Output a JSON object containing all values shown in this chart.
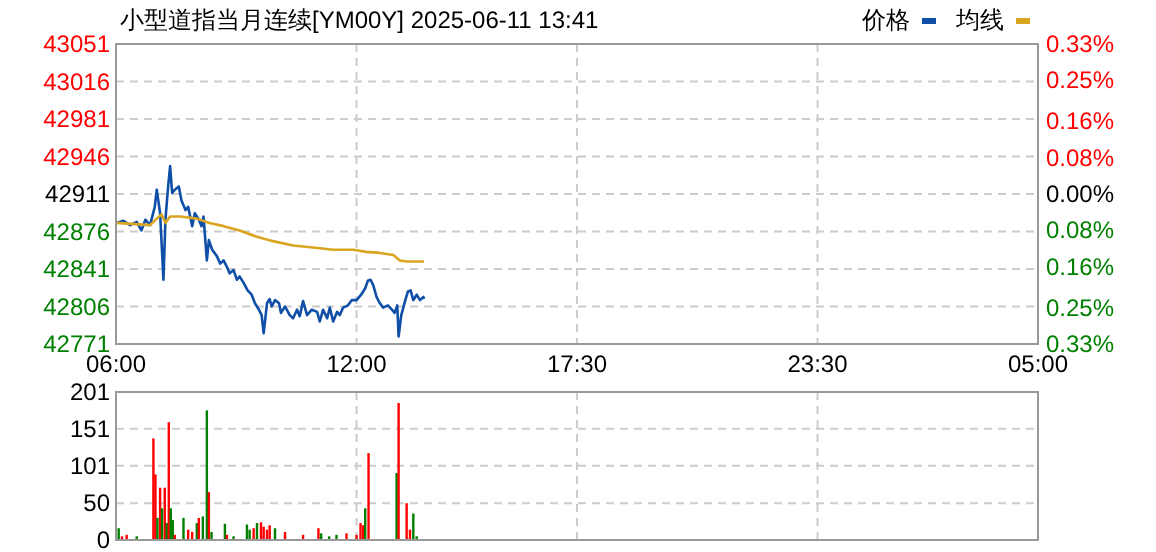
{
  "chart_data": [
    {
      "type": "line",
      "title": "小型道指当月连续[YM00Y] 2025-06-11 13:41",
      "xlim": [
        "2025-06-11T06:00",
        "2025-06-12T05:00"
      ],
      "xticks": [
        {
          "value": "2025-06-11T06:00",
          "label": "06:00"
        },
        {
          "value": "2025-06-11T12:00",
          "label": "12:00"
        },
        {
          "value": "2025-06-11T17:30",
          "label": "17:30"
        },
        {
          "value": "2025-06-11T23:30",
          "label": "23:30"
        },
        {
          "value": "2025-06-12T05:00",
          "label": "05:00"
        }
      ],
      "ylim": [
        42771,
        43051
      ],
      "yticks": [
        42771,
        42806,
        42841,
        42876,
        42911,
        42946,
        42981,
        43016,
        43051
      ],
      "y2lim": [
        -0.33,
        0.33
      ],
      "y2ticks": [
        {
          "value": -0.33,
          "label": "0.33%"
        },
        {
          "value": -0.25,
          "label": "0.25%"
        },
        {
          "value": -0.16,
          "label": "0.16%"
        },
        {
          "value": -0.08,
          "label": "0.08%"
        },
        {
          "value": 0,
          "label": "0.00%"
        },
        {
          "value": 0.08,
          "label": "0.08%"
        },
        {
          "value": 0.16,
          "label": "0.16%"
        },
        {
          "value": 0.25,
          "label": "0.25%"
        },
        {
          "value": 0.33,
          "label": "0.33%"
        }
      ],
      "grid": true,
      "legend": "top right",
      "series": [
        {
          "name": "价格",
          "color": "#0f4fa8",
          "x": [
            "2025-06-11T06:01",
            "2025-06-11T06:11",
            "2025-06-11T06:21",
            "2025-06-11T06:31",
            "2025-06-11T06:38",
            "2025-06-11T06:44",
            "2025-06-11T06:51",
            "2025-06-11T06:58",
            "2025-06-11T07:01",
            "2025-06-11T07:06",
            "2025-06-11T07:11",
            "2025-06-11T07:14",
            "2025-06-11T07:18",
            "2025-06-11T07:21",
            "2025-06-11T07:24",
            "2025-06-11T07:28",
            "2025-06-11T07:34",
            "2025-06-11T07:38",
            "2025-06-11T07:44",
            "2025-06-11T07:48",
            "2025-06-11T07:54",
            "2025-06-11T07:58",
            "2025-06-11T08:04",
            "2025-06-11T08:08",
            "2025-06-11T08:11",
            "2025-06-11T08:16",
            "2025-06-11T08:19",
            "2025-06-11T08:24",
            "2025-06-11T08:31",
            "2025-06-11T08:36",
            "2025-06-11T08:41",
            "2025-06-11T08:46",
            "2025-06-11T08:50",
            "2025-06-11T08:56",
            "2025-06-11T09:01",
            "2025-06-11T09:05",
            "2025-06-11T09:11",
            "2025-06-11T09:17",
            "2025-06-11T09:23",
            "2025-06-11T09:28",
            "2025-06-11T09:34",
            "2025-06-11T09:38",
            "2025-06-11T09:41",
            "2025-06-11T09:46",
            "2025-06-11T09:50",
            "2025-06-11T09:53",
            "2025-06-11T09:58",
            "2025-06-11T10:04",
            "2025-06-11T10:07",
            "2025-06-11T10:13",
            "2025-06-11T10:20",
            "2025-06-11T10:25",
            "2025-06-11T10:31",
            "2025-06-11T10:35",
            "2025-06-11T10:40",
            "2025-06-11T10:46",
            "2025-06-11T10:53",
            "2025-06-11T11:01",
            "2025-06-11T11:05",
            "2025-06-11T11:10",
            "2025-06-11T11:16",
            "2025-06-11T11:20",
            "2025-06-11T11:25",
            "2025-06-11T11:31",
            "2025-06-11T11:35",
            "2025-06-11T11:40",
            "2025-06-11T11:47",
            "2025-06-11T11:53",
            "2025-06-11T12:00",
            "2025-06-11T12:07",
            "2025-06-11T12:13",
            "2025-06-11T12:17",
            "2025-06-11T12:21",
            "2025-06-11T12:25",
            "2025-06-11T12:30",
            "2025-06-11T12:35",
            "2025-06-11T12:40",
            "2025-06-11T12:47",
            "2025-06-11T12:53",
            "2025-06-11T12:57",
            "2025-06-11T13:01",
            "2025-06-11T13:03",
            "2025-06-11T13:07",
            "2025-06-11T13:13",
            "2025-06-11T13:17",
            "2025-06-11T13:21",
            "2025-06-11T13:25",
            "2025-06-11T13:30",
            "2025-06-11T13:35",
            "2025-06-11T13:40",
            "2025-06-11T13:41"
          ],
          "values": [
            42884,
            42886,
            42882,
            42885,
            42877,
            42887,
            42882,
            42899,
            42915,
            42893,
            42831,
            42887,
            42918,
            42937,
            42912,
            42915,
            42918,
            42905,
            42896,
            42899,
            42881,
            42893,
            42887,
            42881,
            42890,
            42849,
            42868,
            42859,
            42853,
            42846,
            42849,
            42843,
            42837,
            42840,
            42831,
            42834,
            42828,
            42821,
            42817,
            42809,
            42803,
            42798,
            42781,
            42809,
            42813,
            42806,
            42812,
            42809,
            42800,
            42806,
            42798,
            42795,
            42803,
            42797,
            42811,
            42798,
            42803,
            42801,
            42792,
            42803,
            42795,
            42805,
            42792,
            42801,
            42798,
            42805,
            42807,
            42812,
            42812,
            42817,
            42823,
            42830,
            42831,
            42826,
            42815,
            42809,
            42805,
            42807,
            42803,
            42800,
            42807,
            42778,
            42798,
            42812,
            42820,
            42821,
            42812,
            42817,
            42812,
            42815,
            42813
          ]
        },
        {
          "name": "均线",
          "color": "#daa520",
          "x": [
            "2025-06-11T06:01",
            "2025-06-11T06:51",
            "2025-06-11T07:01",
            "2025-06-11T07:08",
            "2025-06-11T07:14",
            "2025-06-11T07:21",
            "2025-06-11T07:36",
            "2025-06-11T08:01",
            "2025-06-11T08:20",
            "2025-06-11T08:41",
            "2025-06-11T09:05",
            "2025-06-11T09:31",
            "2025-06-11T09:55",
            "2025-06-11T10:25",
            "2025-06-11T10:55",
            "2025-06-11T11:25",
            "2025-06-11T11:55",
            "2025-06-11T12:15",
            "2025-06-11T12:35",
            "2025-06-11T12:55",
            "2025-06-11T13:05",
            "2025-06-11T13:15",
            "2025-06-11T13:41"
          ],
          "values": [
            42884,
            42882,
            42888,
            42892,
            42884,
            42890,
            42890,
            42888,
            42884,
            42881,
            42877,
            42871,
            42867,
            42863,
            42861,
            42859,
            42859,
            42857,
            42856,
            42854,
            42849,
            42848,
            42848
          ]
        }
      ]
    },
    {
      "type": "bar",
      "xlim": [
        "2025-06-11T06:00",
        "2025-06-12T05:00"
      ],
      "xticks": [
        {
          "value": "2025-06-11T06:00",
          "label": null
        },
        {
          "value": "2025-06-11T12:00",
          "label": null
        },
        {
          "value": "2025-06-11T17:30",
          "label": null
        },
        {
          "value": "2025-06-11T23:30",
          "label": null
        },
        {
          "value": "2025-06-12T05:00",
          "label": null
        }
      ],
      "ylim": [
        0,
        201
      ],
      "yticks": [
        0,
        50,
        101,
        151,
        201
      ],
      "grid": true,
      "tick_labels": "y",
      "x": [
        "2025-06-11T06:04",
        "2025-06-11T06:09",
        "2025-06-11T06:16",
        "2025-06-11T06:31",
        "2025-06-11T06:56",
        "2025-06-11T06:59",
        "2025-06-11T07:02",
        "2025-06-11T07:06",
        "2025-06-11T07:09",
        "2025-06-11T07:13",
        "2025-06-11T07:16",
        "2025-06-11T07:19",
        "2025-06-11T07:22",
        "2025-06-11T07:25",
        "2025-06-11T07:28",
        "2025-06-11T07:41",
        "2025-06-11T07:48",
        "2025-06-11T07:54",
        "2025-06-11T08:01",
        "2025-06-11T08:04",
        "2025-06-11T08:10",
        "2025-06-11T08:16",
        "2025-06-11T08:19",
        "2025-06-11T08:23",
        "2025-06-11T08:43",
        "2025-06-11T08:46",
        "2025-06-11T08:56",
        "2025-06-11T09:16",
        "2025-06-11T09:20",
        "2025-06-11T09:26",
        "2025-06-11T09:31",
        "2025-06-11T09:37",
        "2025-06-11T09:41",
        "2025-06-11T09:46",
        "2025-06-11T09:50",
        "2025-06-11T09:58",
        "2025-06-11T10:13",
        "2025-06-11T10:40",
        "2025-06-11T11:03",
        "2025-06-11T11:07",
        "2025-06-11T11:19",
        "2025-06-11T11:30",
        "2025-06-11T11:45",
        "2025-06-11T12:00",
        "2025-06-11T12:06",
        "2025-06-11T12:10",
        "2025-06-11T12:13",
        "2025-06-11T12:18",
        "2025-06-11T13:00",
        "2025-06-11T13:03",
        "2025-06-11T13:15",
        "2025-06-11T13:20",
        "2025-06-11T13:25",
        "2025-06-11T13:30"
      ],
      "values": [
        16,
        5,
        7,
        5,
        138,
        89,
        30,
        71,
        43,
        71,
        23,
        160,
        43,
        27,
        7,
        30,
        14,
        11,
        23,
        30,
        32,
        176,
        65,
        11,
        22,
        7,
        5,
        21,
        14,
        16,
        23,
        24,
        18,
        14,
        20,
        16,
        11,
        7,
        16,
        9,
        5,
        7,
        9,
        7,
        23,
        20,
        43,
        118,
        91,
        186,
        50,
        14,
        36,
        5
      ],
      "colors": [
        "#008000",
        "#ff0000",
        "#ff0000",
        "#008000",
        "#ff0000",
        "#ff0000",
        "#008000",
        "#ff0000",
        "#008000",
        "#ff0000",
        "#008000",
        "#ff0000",
        "#008000",
        "#008000",
        "#ff0000",
        "#008000",
        "#ff0000",
        "#ff0000",
        "#008000",
        "#ff0000",
        "#008000",
        "#008000",
        "#ff0000",
        "#008000",
        "#008000",
        "#ff0000",
        "#008000",
        "#008000",
        "#008000",
        "#ff0000",
        "#008000",
        "#ff0000",
        "#ff0000",
        "#ff0000",
        "#ff0000",
        "#008000",
        "#ff0000",
        "#ff0000",
        "#ff0000",
        "#008000",
        "#008000",
        "#008000",
        "#ff0000",
        "#ff0000",
        "#ff0000",
        "#ff0000",
        "#008000",
        "#ff0000",
        "#008000",
        "#ff0000",
        "#ff0000",
        "#ff0000",
        "#008000",
        "#008000"
      ]
    }
  ]
}
